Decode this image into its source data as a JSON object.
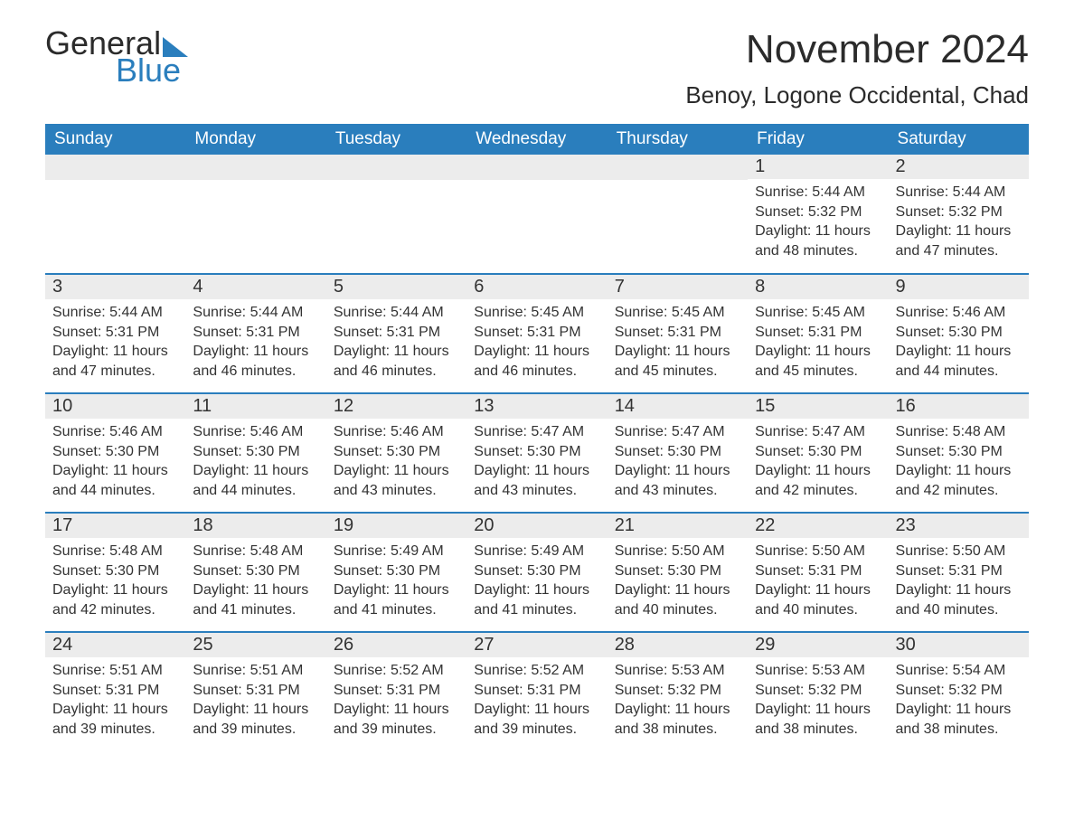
{
  "logo": {
    "word1": "General",
    "word2": "Blue"
  },
  "title": "November 2024",
  "location": "Benoy, Logone Occidental, Chad",
  "colors": {
    "header_bg": "#2a7ebd",
    "header_text": "#ffffff",
    "row_sep": "#2a7ebd",
    "daynum_bg": "#ececec",
    "text": "#333333",
    "page_bg": "#ffffff",
    "logo_accent": "#2a7ebd"
  },
  "typography": {
    "month_title_fontsize": 44,
    "location_fontsize": 26,
    "dayhead_fontsize": 19,
    "daynum_fontsize": 20,
    "body_fontsize": 16
  },
  "columns": [
    "Sunday",
    "Monday",
    "Tuesday",
    "Wednesday",
    "Thursday",
    "Friday",
    "Saturday"
  ],
  "weeks": [
    [
      null,
      null,
      null,
      null,
      null,
      {
        "n": "1",
        "sunrise": "5:44 AM",
        "sunset": "5:32 PM",
        "daylight": "11 hours and 48 minutes."
      },
      {
        "n": "2",
        "sunrise": "5:44 AM",
        "sunset": "5:32 PM",
        "daylight": "11 hours and 47 minutes."
      }
    ],
    [
      {
        "n": "3",
        "sunrise": "5:44 AM",
        "sunset": "5:31 PM",
        "daylight": "11 hours and 47 minutes."
      },
      {
        "n": "4",
        "sunrise": "5:44 AM",
        "sunset": "5:31 PM",
        "daylight": "11 hours and 46 minutes."
      },
      {
        "n": "5",
        "sunrise": "5:44 AM",
        "sunset": "5:31 PM",
        "daylight": "11 hours and 46 minutes."
      },
      {
        "n": "6",
        "sunrise": "5:45 AM",
        "sunset": "5:31 PM",
        "daylight": "11 hours and 46 minutes."
      },
      {
        "n": "7",
        "sunrise": "5:45 AM",
        "sunset": "5:31 PM",
        "daylight": "11 hours and 45 minutes."
      },
      {
        "n": "8",
        "sunrise": "5:45 AM",
        "sunset": "5:31 PM",
        "daylight": "11 hours and 45 minutes."
      },
      {
        "n": "9",
        "sunrise": "5:46 AM",
        "sunset": "5:30 PM",
        "daylight": "11 hours and 44 minutes."
      }
    ],
    [
      {
        "n": "10",
        "sunrise": "5:46 AM",
        "sunset": "5:30 PM",
        "daylight": "11 hours and 44 minutes."
      },
      {
        "n": "11",
        "sunrise": "5:46 AM",
        "sunset": "5:30 PM",
        "daylight": "11 hours and 44 minutes."
      },
      {
        "n": "12",
        "sunrise": "5:46 AM",
        "sunset": "5:30 PM",
        "daylight": "11 hours and 43 minutes."
      },
      {
        "n": "13",
        "sunrise": "5:47 AM",
        "sunset": "5:30 PM",
        "daylight": "11 hours and 43 minutes."
      },
      {
        "n": "14",
        "sunrise": "5:47 AM",
        "sunset": "5:30 PM",
        "daylight": "11 hours and 43 minutes."
      },
      {
        "n": "15",
        "sunrise": "5:47 AM",
        "sunset": "5:30 PM",
        "daylight": "11 hours and 42 minutes."
      },
      {
        "n": "16",
        "sunrise": "5:48 AM",
        "sunset": "5:30 PM",
        "daylight": "11 hours and 42 minutes."
      }
    ],
    [
      {
        "n": "17",
        "sunrise": "5:48 AM",
        "sunset": "5:30 PM",
        "daylight": "11 hours and 42 minutes."
      },
      {
        "n": "18",
        "sunrise": "5:48 AM",
        "sunset": "5:30 PM",
        "daylight": "11 hours and 41 minutes."
      },
      {
        "n": "19",
        "sunrise": "5:49 AM",
        "sunset": "5:30 PM",
        "daylight": "11 hours and 41 minutes."
      },
      {
        "n": "20",
        "sunrise": "5:49 AM",
        "sunset": "5:30 PM",
        "daylight": "11 hours and 41 minutes."
      },
      {
        "n": "21",
        "sunrise": "5:50 AM",
        "sunset": "5:30 PM",
        "daylight": "11 hours and 40 minutes."
      },
      {
        "n": "22",
        "sunrise": "5:50 AM",
        "sunset": "5:31 PM",
        "daylight": "11 hours and 40 minutes."
      },
      {
        "n": "23",
        "sunrise": "5:50 AM",
        "sunset": "5:31 PM",
        "daylight": "11 hours and 40 minutes."
      }
    ],
    [
      {
        "n": "24",
        "sunrise": "5:51 AM",
        "sunset": "5:31 PM",
        "daylight": "11 hours and 39 minutes."
      },
      {
        "n": "25",
        "sunrise": "5:51 AM",
        "sunset": "5:31 PM",
        "daylight": "11 hours and 39 minutes."
      },
      {
        "n": "26",
        "sunrise": "5:52 AM",
        "sunset": "5:31 PM",
        "daylight": "11 hours and 39 minutes."
      },
      {
        "n": "27",
        "sunrise": "5:52 AM",
        "sunset": "5:31 PM",
        "daylight": "11 hours and 39 minutes."
      },
      {
        "n": "28",
        "sunrise": "5:53 AM",
        "sunset": "5:32 PM",
        "daylight": "11 hours and 38 minutes."
      },
      {
        "n": "29",
        "sunrise": "5:53 AM",
        "sunset": "5:32 PM",
        "daylight": "11 hours and 38 minutes."
      },
      {
        "n": "30",
        "sunrise": "5:54 AM",
        "sunset": "5:32 PM",
        "daylight": "11 hours and 38 minutes."
      }
    ]
  ],
  "labels": {
    "sunrise": "Sunrise:",
    "sunset": "Sunset:",
    "daylight": "Daylight:"
  }
}
